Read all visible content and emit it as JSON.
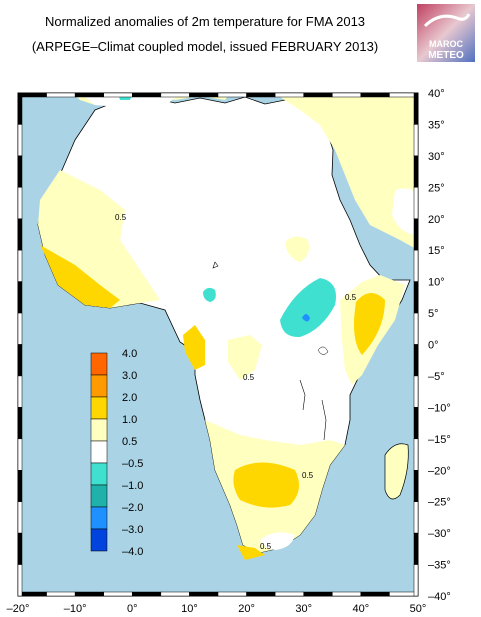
{
  "title": {
    "line1": "Normalized anomalies of 2m temperature for FMA 2013",
    "line2": "(ARPEGE–Climat coupled model, issued FEBRUARY 2013)"
  },
  "logo": {
    "text_top": "MAROC",
    "text_bottom": "METEO"
  },
  "map": {
    "lon_range": [
      -20,
      50
    ],
    "lat_range": [
      -40,
      40
    ],
    "colors": {
      "ocean": "#aad4e6",
      "land_neutral": "#ffffff",
      "pos_0_5_1": "#ffffc0",
      "pos_1_2": "#ffd700",
      "neg_0_5_1": "#40e0d0",
      "neg_1_2": "#1e90ff"
    }
  },
  "axes": {
    "x_ticks": [
      "–20°",
      "–10°",
      "0°",
      "10°",
      "20°",
      "30°",
      "40°",
      "50°"
    ],
    "y_ticks": [
      "40°",
      "35°",
      "30°",
      "25°",
      "20°",
      "15°",
      "10°",
      "5°",
      "0°",
      "–5°",
      "–10°",
      "–15°",
      "–20°",
      "–25°",
      "–30°",
      "–35°",
      "–40°"
    ]
  },
  "legend": {
    "labels": [
      "4.0",
      "3.0",
      "2.0",
      "1.0",
      "0.5",
      "–0.5",
      "–1.0",
      "–2.0",
      "–3.0",
      "–4.0"
    ],
    "colors": [
      "#ff6600",
      "#ff9a00",
      "#ffd700",
      "#ffffc0",
      "#ffffff",
      "#40e0d0",
      "#20b2aa",
      "#1e90ff",
      "#0044dd"
    ]
  },
  "contour_labels": {
    "west": "0.5",
    "east": "0.5",
    "central_south": "0.5",
    "southern": "0.5",
    "south_tip": "0.5"
  }
}
